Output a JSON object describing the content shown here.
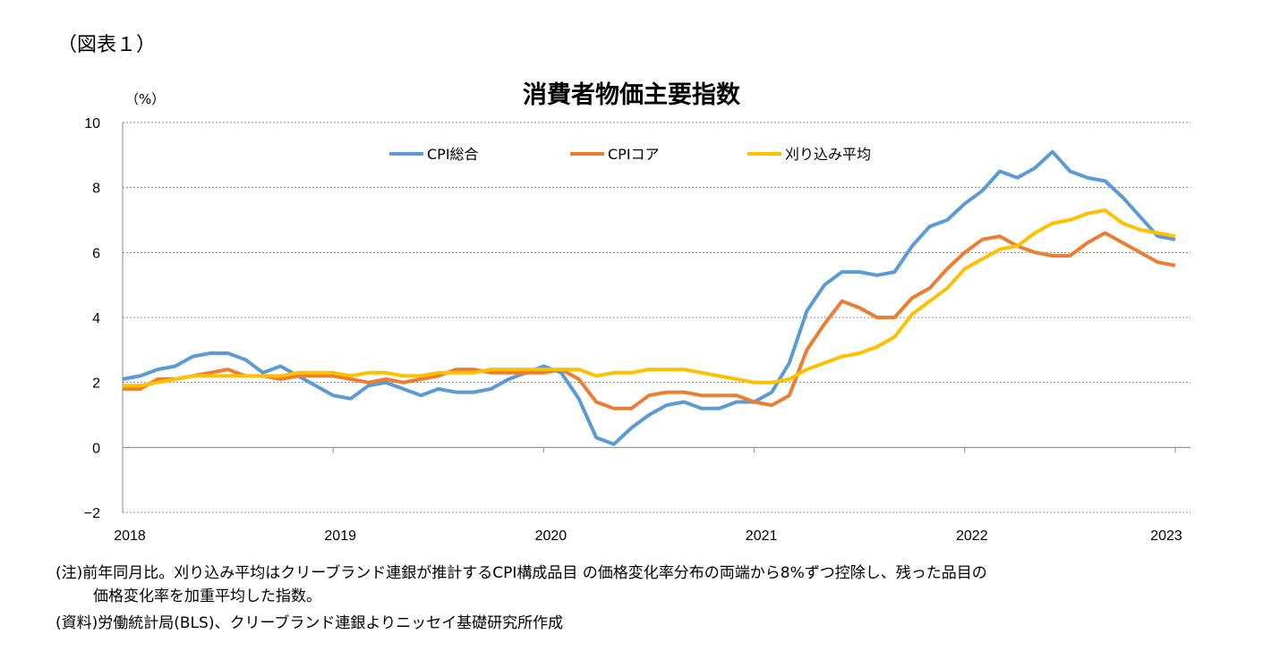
{
  "figure_label": "（図表１）",
  "notes": [
    "(注)前年同月比。刈り込み平均はクリーブランド連銀が推計するCPI構成品目 の価格変化率分布の両端から8%ずつ控除し、残った品目の",
    "価格変化率を加重平均した指数。",
    "(資料)労働統計局(BLS)、クリーブランド連銀よりニッセイ基礎研究所作成"
  ],
  "chart_data": {
    "type": "line",
    "title": "消費者物価主要指数",
    "ylabel": "（%）",
    "ylim": [
      -2,
      10
    ],
    "yticks": [
      10,
      8,
      6,
      4,
      2,
      0,
      -2
    ],
    "ytick_labels": [
      "10",
      "8",
      "6",
      "4",
      "2",
      "0",
      "−2"
    ],
    "xlim": [
      "2018-01",
      "2023-01"
    ],
    "xtick_labels": [
      "2018",
      "2019",
      "2020",
      "2021",
      "2022",
      "2023"
    ],
    "x_frequency": "monthly",
    "grid": "horizontal dashed",
    "legend_position": "top-center",
    "series": [
      {
        "name": "CPI総合",
        "color": "#5B9BD5",
        "values": [
          2.1,
          2.2,
          2.4,
          2.5,
          2.8,
          2.9,
          2.9,
          2.7,
          2.3,
          2.5,
          2.2,
          1.9,
          1.6,
          1.5,
          1.9,
          2.0,
          1.8,
          1.6,
          1.8,
          1.7,
          1.7,
          1.8,
          2.1,
          2.3,
          2.5,
          2.3,
          1.5,
          0.3,
          0.1,
          0.6,
          1.0,
          1.3,
          1.4,
          1.2,
          1.2,
          1.4,
          1.4,
          1.7,
          2.6,
          4.2,
          5.0,
          5.4,
          5.4,
          5.3,
          5.4,
          6.2,
          6.8,
          7.0,
          7.5,
          7.9,
          8.5,
          8.3,
          8.6,
          9.1,
          8.5,
          8.3,
          8.2,
          7.7,
          7.1,
          6.5,
          6.4
        ]
      },
      {
        "name": "CPIコア",
        "color": "#ED7D31",
        "values": [
          1.8,
          1.8,
          2.1,
          2.1,
          2.2,
          2.3,
          2.4,
          2.2,
          2.2,
          2.1,
          2.2,
          2.2,
          2.2,
          2.1,
          2.0,
          2.1,
          2.0,
          2.1,
          2.2,
          2.4,
          2.4,
          2.3,
          2.3,
          2.3,
          2.3,
          2.4,
          2.1,
          1.4,
          1.2,
          1.2,
          1.6,
          1.7,
          1.7,
          1.6,
          1.6,
          1.6,
          1.4,
          1.3,
          1.6,
          3.0,
          3.8,
          4.5,
          4.3,
          4.0,
          4.0,
          4.6,
          4.9,
          5.5,
          6.0,
          6.4,
          6.5,
          6.2,
          6.0,
          5.9,
          5.9,
          6.3,
          6.6,
          6.3,
          6.0,
          5.7,
          5.6
        ]
      },
      {
        "name": "刈り込み平均",
        "color": "#FFC000",
        "values": [
          1.9,
          1.9,
          2.0,
          2.1,
          2.2,
          2.2,
          2.2,
          2.2,
          2.2,
          2.2,
          2.3,
          2.3,
          2.3,
          2.2,
          2.3,
          2.3,
          2.2,
          2.2,
          2.3,
          2.3,
          2.3,
          2.4,
          2.4,
          2.4,
          2.4,
          2.4,
          2.4,
          2.2,
          2.3,
          2.3,
          2.4,
          2.4,
          2.4,
          2.3,
          2.2,
          2.1,
          2.0,
          2.0,
          2.1,
          2.4,
          2.6,
          2.8,
          2.9,
          3.1,
          3.4,
          4.1,
          4.5,
          4.9,
          5.5,
          5.8,
          6.1,
          6.2,
          6.6,
          6.9,
          7.0,
          7.2,
          7.3,
          6.9,
          6.7,
          6.6,
          6.5
        ]
      }
    ]
  }
}
